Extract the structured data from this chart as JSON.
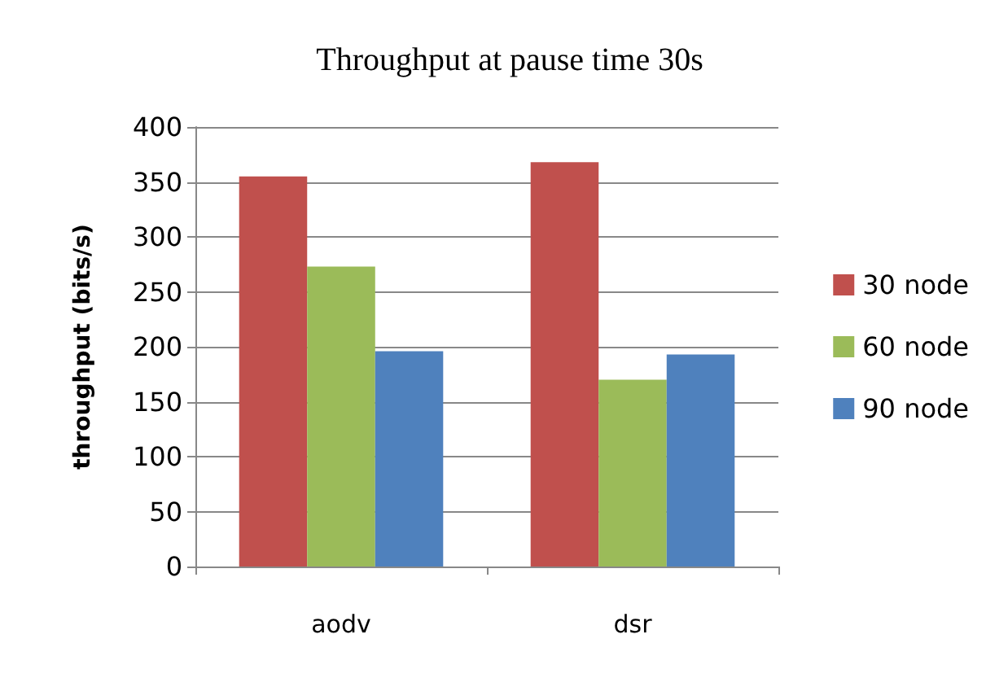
{
  "chart_data": {
    "type": "bar",
    "title": "Throughput at pause time 30s",
    "ylabel": "throughput (bits/s)",
    "categories": [
      "aodv",
      "dsr"
    ],
    "series": [
      {
        "name": "30 node",
        "color": "#c0504d",
        "values": [
          355,
          368
        ]
      },
      {
        "name": "60 node",
        "color": "#9bbb59",
        "values": [
          273,
          170
        ]
      },
      {
        "name": "90 node",
        "color": "#4f81bd",
        "values": [
          196,
          193
        ]
      }
    ],
    "ylim": [
      0,
      400
    ],
    "yticks": [
      0,
      50,
      100,
      150,
      200,
      250,
      300,
      350,
      400
    ],
    "grid": "y",
    "legend": "right"
  }
}
